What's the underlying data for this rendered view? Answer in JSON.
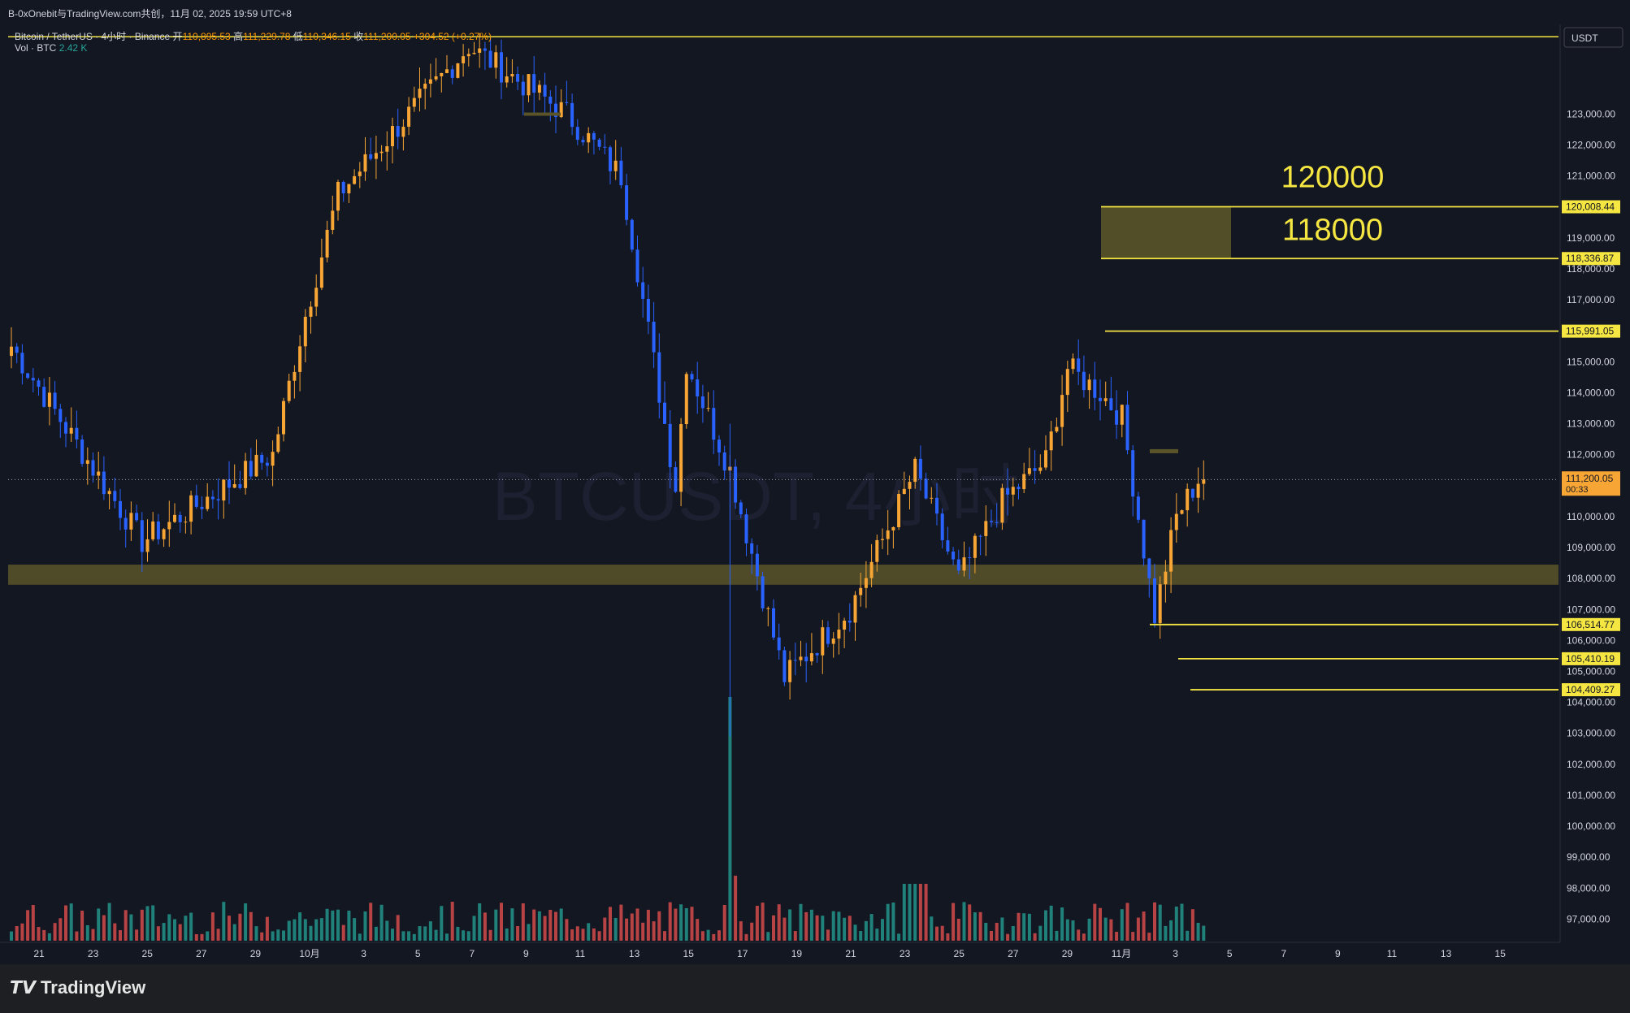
{
  "header": {
    "watermark_line": "B-0xOnebit与TradingView.com共创，11月 02, 2025 19:59 UTC+8"
  },
  "legend": {
    "symbol": "Bitcoin / TetherUS · 4小时 · Binance",
    "open_label": "开",
    "open": "110,895.53",
    "high_label": "高",
    "high": "111,229.78",
    "low_label": "低",
    "low": "110,346.15",
    "close_label": "收",
    "close": "111,200.05",
    "change": "+304.52 (+0.27%)",
    "vol_label": "Vol · BTC",
    "vol_value": "2.42 K"
  },
  "watermark": "BTCUSDT, 4小时",
  "currency": "USDT",
  "brand": "TradingView",
  "colors": {
    "up": "#f7a534",
    "down": "#2962ff",
    "vol_up": "#26a69a",
    "vol_down": "#ef5350",
    "level_line": "#f5e642",
    "zone": "#5a5428",
    "background": "#131722"
  },
  "chart_data": {
    "type": "candlestick",
    "title": "Bitcoin / TetherUS · 4小时 · Binance",
    "y_axis": {
      "ticks": [
        97000,
        98000,
        99000,
        100000,
        101000,
        102000,
        103000,
        104000,
        105000,
        106000,
        107000,
        108000,
        109000,
        110000,
        111000,
        112000,
        113000,
        114000,
        115000,
        116000,
        117000,
        118000,
        119000,
        120000,
        121000,
        122000,
        123000
      ],
      "range": [
        96250,
        125900
      ]
    },
    "x_axis": {
      "labels": [
        "21",
        "23",
        "25",
        "27",
        "29",
        "10月",
        "3",
        "5",
        "7",
        "9",
        "11",
        "13",
        "15",
        "17",
        "19",
        "21",
        "23",
        "25",
        "27",
        "29",
        "11月",
        "3",
        "5",
        "7",
        "9",
        "11",
        "13",
        "15"
      ]
    },
    "key_points": [
      {
        "label": "9/21",
        "close": 115500
      },
      {
        "label": "9/25",
        "close": 109200
      },
      {
        "label": "9/29",
        "close": 112000
      },
      {
        "label": "10/1",
        "close": 116500
      },
      {
        "label": "10/3",
        "close": 120400
      },
      {
        "label": "10/6",
        "close": 125200
      },
      {
        "label": "10/8",
        "close": 123000
      },
      {
        "label": "10/10",
        "close": 121000
      },
      {
        "label": "10/11",
        "close": 111000
      },
      {
        "label": "10/13",
        "close": 115000
      },
      {
        "label": "10/15",
        "close": 111500
      },
      {
        "label": "10/17",
        "close": 104800
      },
      {
        "label": "10/19",
        "close": 107000
      },
      {
        "label": "10/21",
        "close": 111500
      },
      {
        "label": "10/22",
        "close": 108000
      },
      {
        "label": "10/24",
        "close": 110500
      },
      {
        "label": "10/26",
        "close": 111800
      },
      {
        "label": "10/27",
        "close": 114800
      },
      {
        "label": "10/28",
        "close": 114000
      },
      {
        "label": "10/29",
        "close": 113200
      },
      {
        "label": "10/31",
        "close": 106800
      },
      {
        "label": "11/1",
        "close": 110000
      },
      {
        "label": "11/2",
        "close": 111200.05
      }
    ],
    "price_lines": [
      {
        "price": 120008.44,
        "label": "120,008.44"
      },
      {
        "price": 118336.87,
        "label": "118,336.87"
      },
      {
        "price": 115991.05,
        "label": "115,991.05"
      },
      {
        "price": 106514.77,
        "label": "106,514.77"
      },
      {
        "price": 105410.19,
        "label": "105,410.19"
      },
      {
        "price": 104409.27,
        "label": "104,409.27"
      }
    ],
    "current_price": {
      "price": 111200.05,
      "label": "111,200.05",
      "countdown": "00:33"
    },
    "zones": [
      {
        "from": 107800,
        "to": 108450
      },
      {
        "from": 118336.87,
        "to": 120008.44
      }
    ],
    "annotations": [
      "120000",
      "118000"
    ],
    "top_line_price": 125500
  }
}
